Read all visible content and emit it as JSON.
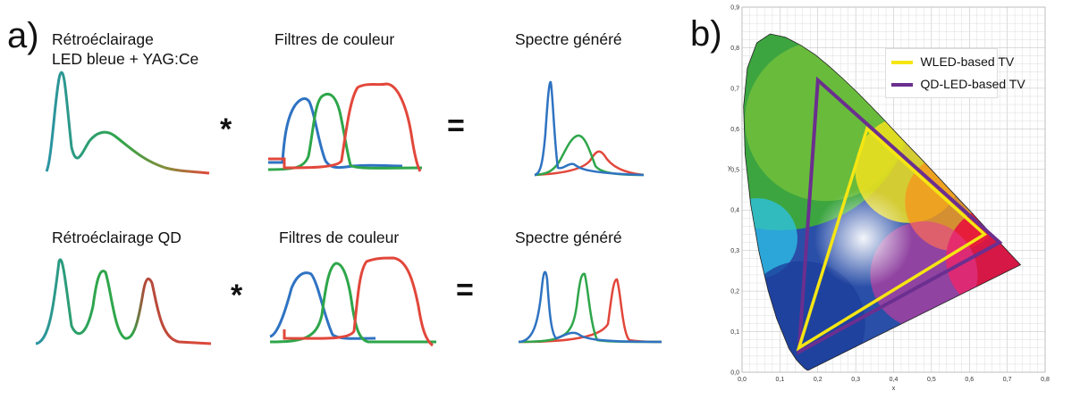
{
  "panel_a": {
    "letter": "a)",
    "row1": {
      "backlight_line1": "Rétroéclairage",
      "backlight_line2": "LED bleue + YAG:Ce",
      "filters": "Filtres de couleur",
      "result": "Spectre généré",
      "times": "*",
      "equals": "="
    },
    "row2": {
      "backlight": "Rétroéclairage QD",
      "filters": "Filtres de couleur",
      "result": "Spectre généré",
      "times": "*",
      "equals": "="
    },
    "colors": {
      "blue": "#2f73c2",
      "green": "#2ea64a",
      "red": "#e2473b",
      "teal": "#2b93a6"
    }
  },
  "panel_b": {
    "letter": "b)",
    "legend": [
      {
        "label": "WLED-based TV",
        "color": "#f5e613"
      },
      {
        "label": "QD-LED-based TV",
        "color": "#6b2f8f"
      }
    ],
    "x_axis_label": "x",
    "y_axis_label": "y",
    "x_ticks": [
      "0,0",
      "0,1",
      "0,2",
      "0,3",
      "0,4",
      "0,5",
      "0,6",
      "0,7",
      "0,8"
    ],
    "y_ticks": [
      "0,0",
      "0,1",
      "0,2",
      "0,3",
      "0,4",
      "0,5",
      "0,6",
      "0,7",
      "0,8",
      "0,9"
    ],
    "wled_gamut": [
      [
        0.64,
        0.34
      ],
      [
        0.33,
        0.6
      ],
      [
        0.15,
        0.06
      ]
    ],
    "qd_gamut": [
      [
        0.68,
        0.32
      ],
      [
        0.2,
        0.72
      ],
      [
        0.15,
        0.05
      ]
    ]
  }
}
